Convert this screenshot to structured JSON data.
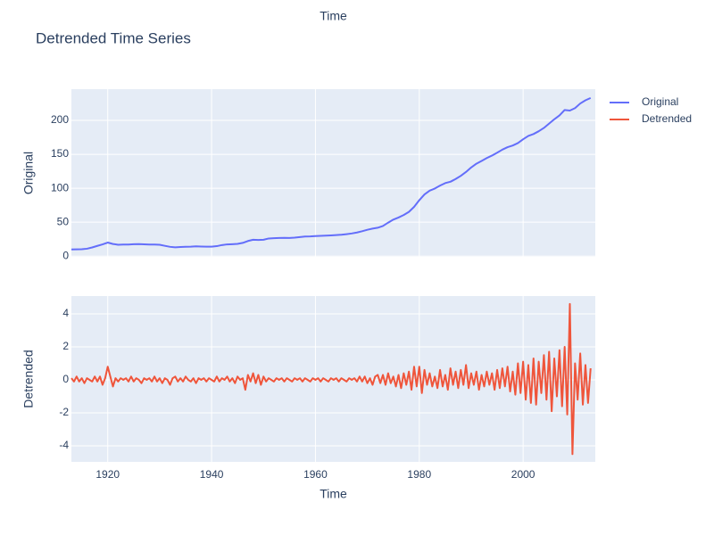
{
  "chart_data": [
    {
      "type": "line",
      "title": "Detrended Time Series",
      "xlabel": "Time",
      "ylabel": "Original",
      "xlim": [
        1913,
        2013.9
      ],
      "xticks": [
        1920,
        1940,
        1960,
        1980,
        2000
      ],
      "ylim": [
        -1,
        246
      ],
      "yticks": [
        0,
        50,
        100,
        150,
        200
      ],
      "grid": true,
      "series": [
        {
          "name": "Original",
          "color": "#636efa",
          "x": [
            1913,
            1914,
            1915,
            1916,
            1917,
            1918,
            1919,
            1920,
            1921,
            1922,
            1923,
            1924,
            1925,
            1926,
            1927,
            1928,
            1929,
            1930,
            1931,
            1932,
            1933,
            1934,
            1935,
            1936,
            1937,
            1938,
            1939,
            1940,
            1941,
            1942,
            1943,
            1944,
            1945,
            1946,
            1947,
            1948,
            1949,
            1950,
            1951,
            1952,
            1953,
            1954,
            1955,
            1956,
            1957,
            1958,
            1959,
            1960,
            1961,
            1962,
            1963,
            1964,
            1965,
            1966,
            1967,
            1968,
            1969,
            1970,
            1971,
            1972,
            1973,
            1974,
            1975,
            1976,
            1977,
            1978,
            1979,
            1980,
            1981,
            1982,
            1983,
            1984,
            1985,
            1986,
            1987,
            1988,
            1989,
            1990,
            1991,
            1992,
            1993,
            1994,
            1995,
            1996,
            1997,
            1998,
            1999,
            2000,
            2001,
            2002,
            2003,
            2004,
            2005,
            2006,
            2007,
            2008,
            2009,
            2010,
            2011,
            2012,
            2013
          ],
          "values": [
            9.9,
            10,
            10.1,
            10.9,
            12.8,
            15.1,
            17.3,
            20,
            17.9,
            16.8,
            17.1,
            17.1,
            17.5,
            17.7,
            17.4,
            17.1,
            17.1,
            16.7,
            15.2,
            13.7,
            13,
            13.4,
            13.7,
            13.9,
            14.4,
            14.1,
            13.9,
            14,
            14.7,
            16.3,
            17.3,
            17.6,
            18,
            19.5,
            22.3,
            24.1,
            23.8,
            24.1,
            26,
            26.5,
            26.7,
            26.9,
            26.8,
            27.2,
            28.1,
            28.9,
            29.1,
            29.6,
            29.9,
            30.2,
            30.6,
            31,
            31.5,
            32.4,
            33.4,
            34.8,
            36.7,
            38.8,
            40.5,
            41.8,
            44.4,
            49.3,
            53.8,
            56.9,
            60.6,
            65.2,
            72.6,
            82.4,
            90.9,
            96.5,
            99.6,
            103.9,
            107.6,
            109.6,
            113.6,
            118.3,
            124,
            130.7,
            136.2,
            140.3,
            144.5,
            148.2,
            152.4,
            156.9,
            160.5,
            163,
            166.6,
            172.2,
            177.1,
            179.9,
            184,
            188.9,
            195.3,
            201.6,
            207.3,
            215.3,
            214.5,
            218.1,
            224.9,
            229.6,
            233
          ]
        }
      ]
    },
    {
      "type": "line",
      "xlabel": "Time",
      "ylabel": "Detrended",
      "xlim": [
        1913,
        2013.9
      ],
      "xticks": [
        1920,
        1940,
        1960,
        1980,
        2000
      ],
      "ylim": [
        -4.97,
        5.08
      ],
      "yticks": [
        -4,
        -2,
        0,
        2,
        4
      ],
      "grid": true,
      "series": [
        {
          "name": "Detrended",
          "color": "#ef553b",
          "x": [
            1913,
            1913.5,
            1914,
            1914.5,
            1915,
            1915.5,
            1916,
            1916.5,
            1917,
            1917.5,
            1918,
            1918.5,
            1919,
            1919.5,
            1920,
            1920.5,
            1921,
            1921.5,
            1922,
            1922.5,
            1923,
            1923.5,
            1924,
            1924.5,
            1925,
            1925.5,
            1926,
            1926.5,
            1927,
            1927.5,
            1928,
            1928.5,
            1929,
            1929.5,
            1930,
            1930.5,
            1931,
            1931.5,
            1932,
            1932.5,
            1933,
            1933.5,
            1934,
            1934.5,
            1935,
            1935.5,
            1936,
            1936.5,
            1937,
            1937.5,
            1938,
            1938.5,
            1939,
            1939.5,
            1940,
            1940.5,
            1941,
            1941.5,
            1942,
            1942.5,
            1943,
            1943.5,
            1944,
            1944.5,
            1945,
            1945.5,
            1946,
            1946.5,
            1947,
            1947.5,
            1948,
            1948.5,
            1949,
            1949.5,
            1950,
            1950.5,
            1951,
            1951.5,
            1952,
            1952.5,
            1953,
            1953.5,
            1954,
            1954.5,
            1955,
            1955.5,
            1956,
            1956.5,
            1957,
            1957.5,
            1958,
            1958.5,
            1959,
            1959.5,
            1960,
            1960.5,
            1961,
            1961.5,
            1962,
            1962.5,
            1963,
            1963.5,
            1964,
            1964.5,
            1965,
            1965.5,
            1966,
            1966.5,
            1967,
            1967.5,
            1968,
            1968.5,
            1969,
            1969.5,
            1970,
            1970.5,
            1971,
            1971.5,
            1972,
            1972.5,
            1973,
            1973.5,
            1974,
            1974.5,
            1975,
            1975.5,
            1976,
            1976.5,
            1977,
            1977.5,
            1978,
            1978.5,
            1979,
            1979.5,
            1980,
            1980.5,
            1981,
            1981.5,
            1982,
            1982.5,
            1983,
            1983.5,
            1984,
            1984.5,
            1985,
            1985.5,
            1986,
            1986.5,
            1987,
            1987.5,
            1988,
            1988.5,
            1989,
            1989.5,
            1990,
            1990.5,
            1991,
            1991.5,
            1992,
            1992.5,
            1993,
            1993.5,
            1994,
            1994.5,
            1995,
            1995.5,
            1996,
            1996.5,
            1997,
            1997.5,
            1998,
            1998.5,
            1999,
            1999.5,
            2000,
            2000.5,
            2001,
            2001.5,
            2002,
            2002.5,
            2003,
            2003.5,
            2004,
            2004.5,
            2005,
            2005.5,
            2006,
            2006.5,
            2007,
            2007.5,
            2008,
            2008.5,
            2009,
            2009.5,
            2010,
            2010.5,
            2011,
            2011.5,
            2012,
            2012.5,
            2013
          ],
          "values": [
            0.1,
            -0.1,
            0.2,
            -0.1,
            0.1,
            -0.2,
            0.1,
            0,
            -0.1,
            0.2,
            -0.1,
            0.2,
            -0.3,
            0.1,
            0.8,
            0.2,
            -0.4,
            0.1,
            -0.1,
            0.1,
            0,
            0.1,
            -0.1,
            0.2,
            -0.1,
            0.1,
            0,
            -0.2,
            0.1,
            0,
            0.1,
            -0.1,
            0.2,
            -0.1,
            0.1,
            -0.2,
            0.1,
            0,
            -0.3,
            0.1,
            0.2,
            -0.1,
            0.1,
            -0.1,
            0.2,
            0,
            -0.1,
            0.1,
            -0.2,
            0.1,
            0,
            0.1,
            -0.1,
            0.1,
            0,
            -0.1,
            0.2,
            -0.1,
            0.1,
            0,
            0.2,
            -0.1,
            0.1,
            -0.2,
            0.2,
            0,
            0.1,
            -0.6,
            0.3,
            -0.1,
            0.4,
            -0.2,
            0.3,
            -0.3,
            0.2,
            -0.1,
            0.1,
            0,
            -0.1,
            0.1,
            0,
            0.1,
            -0.1,
            0.1,
            0,
            -0.1,
            0.1,
            0,
            0.1,
            -0.1,
            0.1,
            0,
            -0.1,
            0.1,
            0,
            0.1,
            -0.1,
            0.1,
            0,
            -0.1,
            0.1,
            0,
            0.1,
            -0.1,
            0.1,
            0,
            -0.1,
            0.1,
            0,
            0.1,
            -0.1,
            0.2,
            -0.1,
            0.2,
            -0.2,
            0.1,
            -0.3,
            0.2,
            0.3,
            -0.2,
            0.3,
            -0.3,
            0.4,
            -0.2,
            0.2,
            -0.4,
            0.3,
            -0.5,
            0.4,
            -0.3,
            0.5,
            -0.6,
            0.8,
            -0.4,
            0.8,
            -0.8,
            0.6,
            -0.3,
            0.4,
            -0.4,
            0.2,
            -0.5,
            0.6,
            -0.4,
            0.3,
            -0.6,
            0.7,
            -0.3,
            0.5,
            -0.5,
            0.6,
            -0.3,
            0.9,
            -0.5,
            0.4,
            -0.3,
            0.5,
            -0.6,
            0.3,
            -0.4,
            0.5,
            -0.3,
            0.4,
            -0.6,
            0.6,
            -0.5,
            0.7,
            -0.4,
            0.8,
            -0.7,
            0.5,
            -0.9,
            1.0,
            -0.8,
            1.1,
            -1.2,
            0.9,
            -1.4,
            1.3,
            -1.5,
            1.1,
            -0.8,
            1.5,
            -1.2,
            1.7,
            -1.9,
            1.3,
            -1.0,
            1.8,
            -1.6,
            2.0,
            -2.1,
            4.6,
            -4.5,
            1.0,
            -1.2,
            1.6,
            -1.5,
            0.9,
            -1.4,
            0.7
          ]
        }
      ]
    }
  ]
}
